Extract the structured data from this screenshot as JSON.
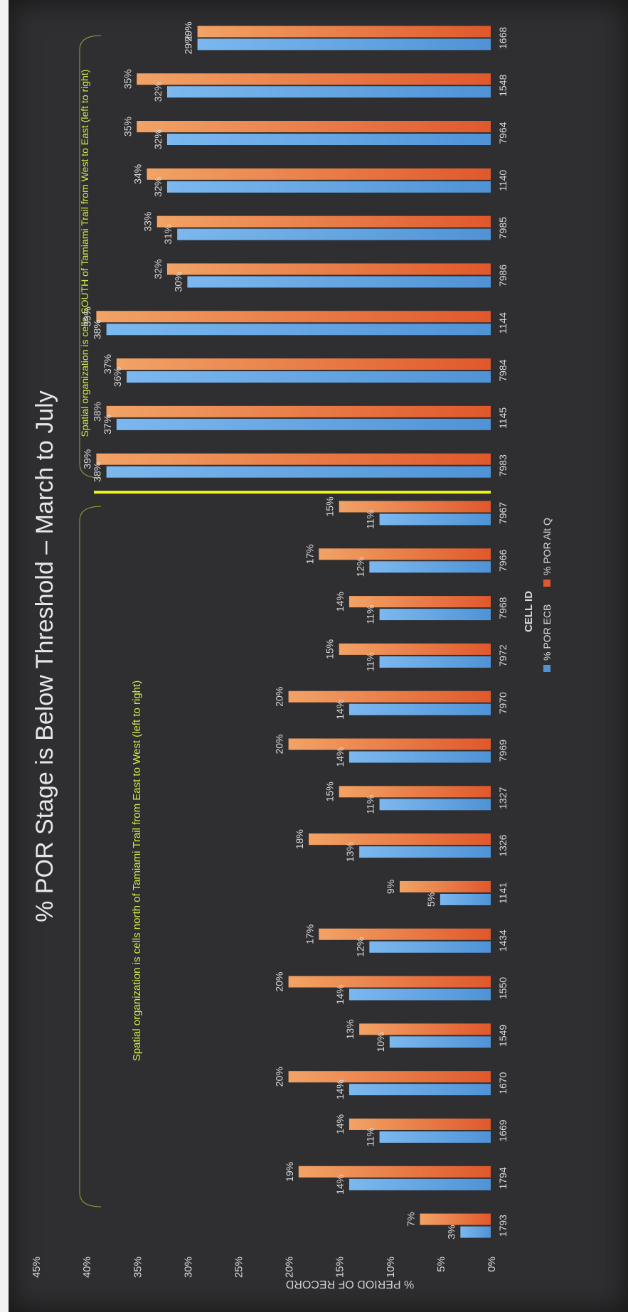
{
  "chart_data": {
    "type": "bar",
    "title": "% POR Stage is Below Threshold – March to July",
    "xlabel": "CELL ID",
    "ylabel": "% PERIOD OF RECORD",
    "ylim": [
      0,
      45
    ],
    "yticks": [
      "0%",
      "5%",
      "10%",
      "15%",
      "20%",
      "25%",
      "30%",
      "35%",
      "40%",
      "45%"
    ],
    "grid": false,
    "legend_position": "bottom",
    "categories": [
      "1793",
      "1794",
      "1669",
      "1670",
      "1549",
      "1550",
      "1434",
      "1141",
      "1326",
      "1327",
      "7969",
      "7970",
      "7972",
      "7968",
      "7966",
      "7967",
      "7983",
      "1145",
      "7984",
      "1144",
      "7986",
      "7985",
      "1140",
      "7964",
      "1548",
      "1668"
    ],
    "series": [
      {
        "name": "% POR ECB",
        "color": "#4f93d6",
        "values": [
          3,
          14,
          11,
          14,
          10,
          14,
          12,
          5,
          13,
          11,
          14,
          14,
          11,
          11,
          12,
          11,
          38,
          37,
          36,
          38,
          30,
          31,
          32,
          32,
          32,
          29
        ],
        "labels": [
          "3%",
          "14%",
          "11%",
          "14%",
          "10%",
          "14%",
          "12%",
          "5%",
          "13%",
          "11%",
          "14%",
          "14%",
          "11%",
          "11%",
          "12%",
          "11%",
          "38%",
          "37%",
          "36%",
          "38%",
          "30%",
          "31%",
          "32%",
          "32%",
          "32%",
          "29%"
        ]
      },
      {
        "name": "% POR Alt Q",
        "color": "#e0582c",
        "values": [
          7,
          19,
          14,
          20,
          13,
          20,
          17,
          9,
          18,
          15,
          20,
          20,
          15,
          14,
          17,
          15,
          39,
          38,
          37,
          39,
          32,
          33,
          34,
          35,
          35,
          29
        ],
        "labels": [
          "7%",
          "19%",
          "14%",
          "20%",
          "13%",
          "20%",
          "17%",
          "9%",
          "18%",
          "15%",
          "20%",
          "20%",
          "15%",
          "14%",
          "17%",
          "15%",
          "39%",
          "38%",
          "37%",
          "39%",
          "32%",
          "33%",
          "34%",
          "35%",
          "35%",
          "29%"
        ]
      }
    ],
    "divider_after_category": "7967",
    "annotations": [
      "Spatial organization is cells north of Tamiami Trail from East to West (left to right)",
      "Spatial organization is cells SOUTH of Tamiami Trail from West to East (left to right)"
    ]
  },
  "colors": {
    "background": "#2f2f31",
    "text": "#d9d9d9",
    "annotation": "#d6e84a",
    "divider": "#f3f320"
  }
}
